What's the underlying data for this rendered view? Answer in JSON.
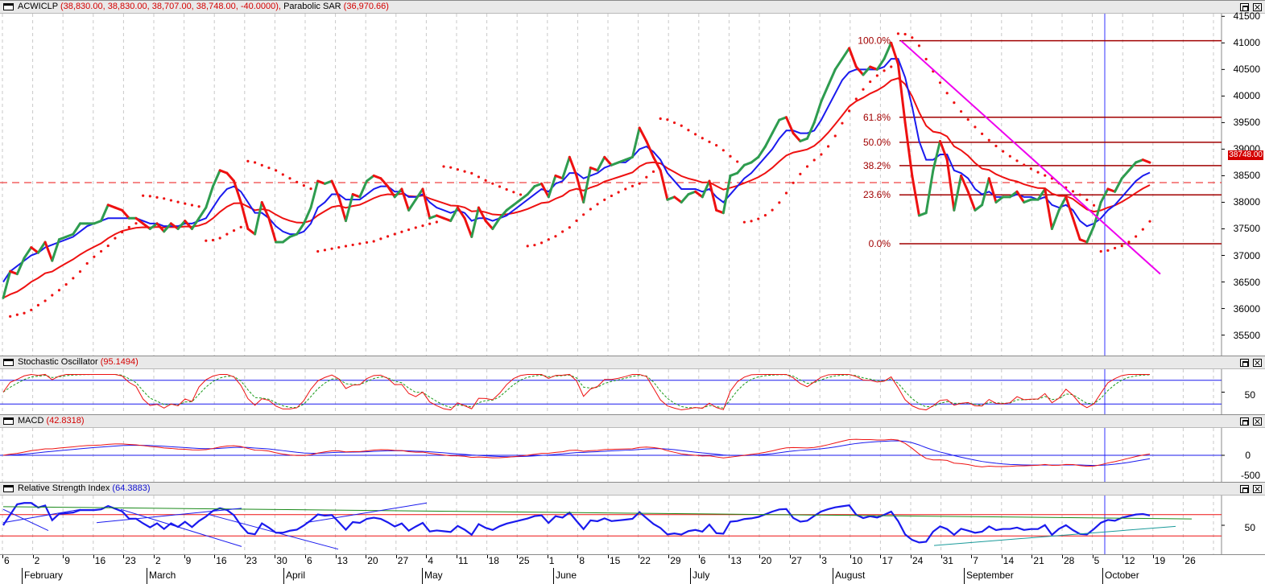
{
  "colors": {
    "up": "#2e9c4f",
    "down": "#ee1111",
    "ma_fast": "#1a1aee",
    "ma_slow": "#ee1111",
    "sar": "#ee1111",
    "fib": "#a10000",
    "trend": "#ee00ee",
    "cursor": "#3333ff",
    "grid": "#c9c9c9"
  },
  "price_pane": {
    "title_symbol": "ACWICLP",
    "title_values": "(38,830.00, 38,830.00, 38,707.00, 38,748.00, -40.0000),",
    "title_indicator": "Parabolic SAR",
    "title_indicator_value": "(36,970.66)",
    "current_price_label": "38748.00",
    "y_ticks": [
      "41500",
      "41000",
      "40500",
      "40000",
      "39500",
      "39000",
      "38500",
      "38000",
      "37500",
      "37000",
      "36500",
      "36000",
      "35500"
    ],
    "fib_labels": [
      "100.0%",
      "61.8%",
      "50.0%",
      "38.2%",
      "23.6%",
      "0.0%"
    ]
  },
  "stoch_pane": {
    "title": "Stochastic Oscillator",
    "value": "(95.1494)",
    "y_ticks": [
      "50"
    ]
  },
  "macd_pane": {
    "title": "MACD",
    "value": "(42.8318)",
    "y_ticks": [
      "0",
      "-500"
    ]
  },
  "rsi_pane": {
    "title": "Relative Strength Index",
    "value": "(64.3883)",
    "y_ticks": [
      "50"
    ]
  },
  "x_axis": {
    "day_ticks": [
      "6",
      "2",
      "9",
      "16",
      "23",
      "2",
      "9",
      "16",
      "23",
      "30",
      "6",
      "13",
      "20",
      "27",
      "4",
      "11",
      "18",
      "25",
      "1",
      "8",
      "15",
      "22",
      "29",
      "6",
      "13",
      "20",
      "27",
      "3",
      "10",
      "17",
      "24",
      "31",
      "7",
      "14",
      "21",
      "28",
      "5",
      "12",
      "19",
      "26"
    ],
    "months": [
      "February",
      "March",
      "April",
      "May",
      "June",
      "July",
      "August",
      "September",
      "October"
    ]
  },
  "chart_data": {
    "type": "line",
    "title": "ACWICLP",
    "ylim": [
      35100,
      41550
    ],
    "fib_levels": [
      {
        "label": "100.0%",
        "value": 41040
      },
      {
        "label": "61.8%",
        "value": 39600
      },
      {
        "label": "50.0%",
        "value": 39130
      },
      {
        "label": "38.2%",
        "value": 38690
      },
      {
        "label": "23.6%",
        "value": 38140
      },
      {
        "label": "0.0%",
        "value": 37220
      }
    ],
    "reference_level": 38370,
    "close": [
      36200,
      36700,
      36650,
      36950,
      37150,
      37050,
      37250,
      36900,
      37300,
      37350,
      37400,
      37600,
      37600,
      37600,
      37650,
      37950,
      37900,
      37850,
      37700,
      37700,
      37600,
      37500,
      37600,
      37450,
      37600,
      37500,
      37650,
      37500,
      37700,
      37900,
      38300,
      38600,
      38550,
      38400,
      38000,
      37500,
      37400,
      38000,
      37700,
      37250,
      37250,
      37350,
      37400,
      37600,
      37900,
      38400,
      38350,
      38400,
      38100,
      37650,
      38150,
      38100,
      38400,
      38500,
      38450,
      38300,
      38100,
      38250,
      37850,
      38050,
      38250,
      37700,
      37750,
      37700,
      37650,
      37900,
      37700,
      37350,
      37900,
      37650,
      37500,
      37700,
      37850,
      37950,
      38050,
      38150,
      38300,
      38350,
      38100,
      38500,
      38450,
      38850,
      38500,
      38000,
      38650,
      38600,
      38850,
      38700,
      38750,
      38800,
      38850,
      39400,
      39150,
      38850,
      38600,
      38050,
      38100,
      38000,
      38150,
      38200,
      38100,
      38400,
      37850,
      37800,
      38500,
      38550,
      38700,
      38750,
      38850,
      39050,
      39300,
      39550,
      39600,
      39300,
      39150,
      39200,
      39500,
      39900,
      40200,
      40500,
      40700,
      40900,
      40550,
      40400,
      40550,
      40500,
      40700,
      41000,
      40600,
      39500,
      38500,
      37750,
      37800,
      38600,
      39150,
      38800,
      37850,
      38500,
      38200,
      37850,
      37950,
      38450,
      38000,
      38100,
      38100,
      38200,
      38000,
      38050,
      38050,
      38250,
      37500,
      37850,
      38100,
      37700,
      37300,
      37250,
      37550,
      38000,
      38250,
      38200,
      38450,
      38600,
      38750,
      38800,
      38748
    ],
    "ma_fast": [
      36500,
      36700,
      36800,
      36900,
      37000,
      37050,
      37150,
      37200,
      37250,
      37300,
      37350,
      37450,
      37550,
      37600,
      37650,
      37700,
      37700,
      37700,
      37700,
      37700,
      37650,
      37600,
      37600,
      37550,
      37550,
      37550,
      37600,
      37600,
      37650,
      37700,
      37900,
      38100,
      38250,
      38300,
      38200,
      38000,
      37800,
      37800,
      37700,
      37550,
      37450,
      37400,
      37400,
      37450,
      37600,
      37900,
      38000,
      38150,
      38150,
      38050,
      38050,
      38050,
      38150,
      38250,
      38300,
      38300,
      38200,
      38200,
      38100,
      38100,
      38150,
      38000,
      37900,
      37850,
      37800,
      37850,
      37800,
      37650,
      37700,
      37700,
      37650,
      37700,
      37750,
      37850,
      37950,
      38050,
      38150,
      38250,
      38200,
      38350,
      38400,
      38550,
      38550,
      38450,
      38500,
      38550,
      38650,
      38700,
      38750,
      38750,
      38850,
      39000,
      39050,
      38950,
      38800,
      38550,
      38400,
      38250,
      38250,
      38250,
      38200,
      38250,
      38100,
      38000,
      38150,
      38300,
      38450,
      38550,
      38700,
      38850,
      39000,
      39200,
      39350,
      39350,
      39300,
      39300,
      39350,
      39550,
      39800,
      40050,
      40300,
      40450,
      40500,
      40500,
      40500,
      40500,
      40550,
      40700,
      40700,
      40350,
      39800,
      39150,
      38800,
      38800,
      38900,
      38900,
      38600,
      38550,
      38450,
      38250,
      38150,
      38200,
      38100,
      38100,
      38100,
      38150,
      38100,
      38100,
      38050,
      38100,
      37950,
      37900,
      37950,
      37850,
      37650,
      37550,
      37600,
      37700,
      37850,
      37950,
      38100,
      38250,
      38400,
      38500,
      38560
    ]
  },
  "stoch_data": {
    "k_last": 95.1494,
    "upper": 80,
    "lower": 20
  },
  "macd_data": {
    "last": 42.8318
  },
  "rsi_data": {
    "last": 64.3883,
    "upper": 70,
    "lower": 30
  }
}
